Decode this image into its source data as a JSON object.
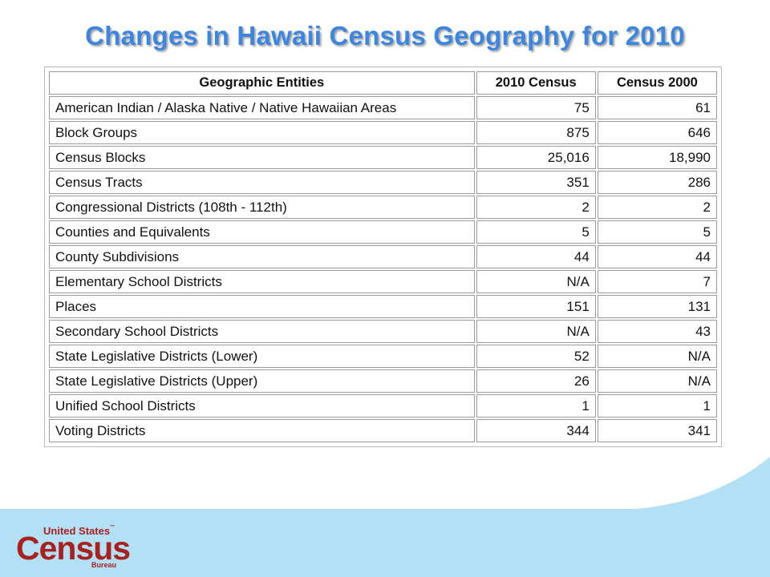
{
  "title": "Changes in Hawaii Census Geography for 2010",
  "table": {
    "headers": [
      "Geographic Entities",
      "2010 Census",
      "Census 2000"
    ],
    "rows": [
      [
        "American Indian / Alaska Native / Native Hawaiian Areas",
        "75",
        "61"
      ],
      [
        "Block Groups",
        "875",
        "646"
      ],
      [
        "Census Blocks",
        "25,016",
        "18,990"
      ],
      [
        "Census Tracts",
        "351",
        "286"
      ],
      [
        "Congressional Districts (108th - 112th)",
        "2",
        "2"
      ],
      [
        "Counties and Equivalents",
        "5",
        "5"
      ],
      [
        "County Subdivisions",
        "44",
        "44"
      ],
      [
        "Elementary School Districts",
        "N/A",
        "7"
      ],
      [
        "Places",
        "151",
        "131"
      ],
      [
        "Secondary School Districts",
        "N/A",
        "43"
      ],
      [
        "State Legislative Districts (Lower)",
        "52",
        "N/A"
      ],
      [
        "State Legislative Districts (Upper)",
        "26",
        "N/A"
      ],
      [
        "Unified School Districts",
        "1",
        "1"
      ],
      [
        "Voting Districts",
        "344",
        "341"
      ]
    ]
  },
  "logo": {
    "line1": "United States",
    "trademark": "™",
    "line2": "Census",
    "line3": "Bureau"
  },
  "colors": {
    "title": "#3d86e0",
    "wave": "#b3e0f4",
    "logo": "#a8211f"
  }
}
